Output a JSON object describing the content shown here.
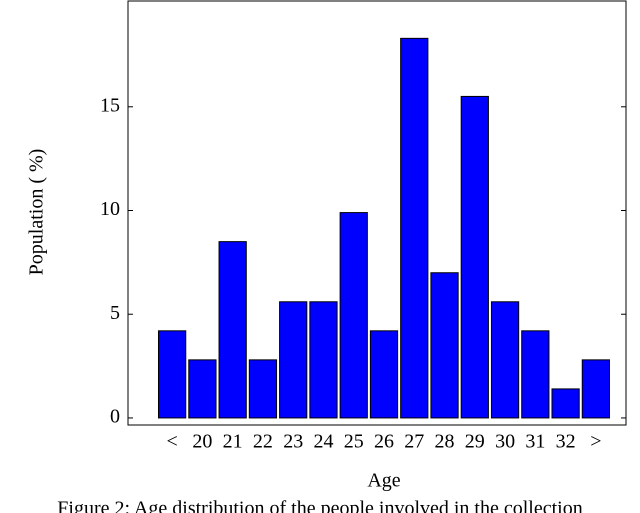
{
  "chart_data": {
    "type": "bar",
    "x_label": "Age",
    "y_label": "Population ( %)",
    "caption": "Figure 2: Age distribution of the people involved in the collection",
    "categories": [
      "<",
      "20",
      "21",
      "22",
      "23",
      "24",
      "25",
      "26",
      "27",
      "28",
      "29",
      "30",
      "31",
      "32",
      ">"
    ],
    "values": [
      4.2,
      2.8,
      8.5,
      2.8,
      5.6,
      5.6,
      9.9,
      4.2,
      18.3,
      7.0,
      15.5,
      5.6,
      4.2,
      1.4,
      2.8
    ],
    "color": "#0000ff",
    "ylim": [
      -0.34,
      20.1
    ],
    "yticks": [
      0,
      5,
      10,
      15
    ],
    "grid": false
  }
}
